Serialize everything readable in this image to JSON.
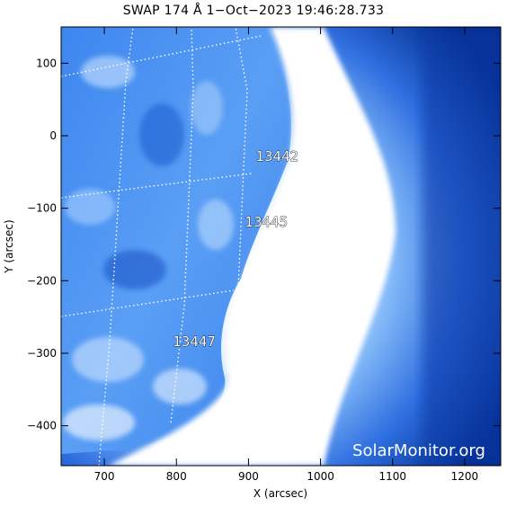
{
  "title": "SWAP 174 Å   1−Oct−2023 19:46:28.733",
  "watermark": "SolarMonitor.org",
  "axes": {
    "xlabel": "X (arcsec)",
    "ylabel": "Y (arcsec)",
    "xlim": [
      640,
      1250
    ],
    "ylim": [
      -455,
      150
    ],
    "xticks": [
      700,
      800,
      900,
      1000,
      1100,
      1200
    ],
    "yticks": [
      100,
      0,
      -100,
      -200,
      -300,
      -400
    ],
    "xtick_labels": [
      "700",
      "800",
      "900",
      "1000",
      "1100",
      "1200"
    ],
    "ytick_labels": [
      "100",
      "0",
      "−100",
      "−200",
      "−300",
      "−400"
    ]
  },
  "regions": [
    {
      "id": "13442",
      "label": "13442",
      "x": 910,
      "y": -35
    },
    {
      "id": "13445",
      "label": "13445",
      "x": 895,
      "y": -125
    },
    {
      "id": "13447",
      "label": "13447",
      "x": 795,
      "y": -290
    }
  ],
  "colors": {
    "background": "#ffffff",
    "map_dark": "#002a8a",
    "map_mid": "#2f7bf0",
    "map_light": "#d8ebff",
    "limb_white": "#ffffff",
    "grid": "#ffffff"
  }
}
